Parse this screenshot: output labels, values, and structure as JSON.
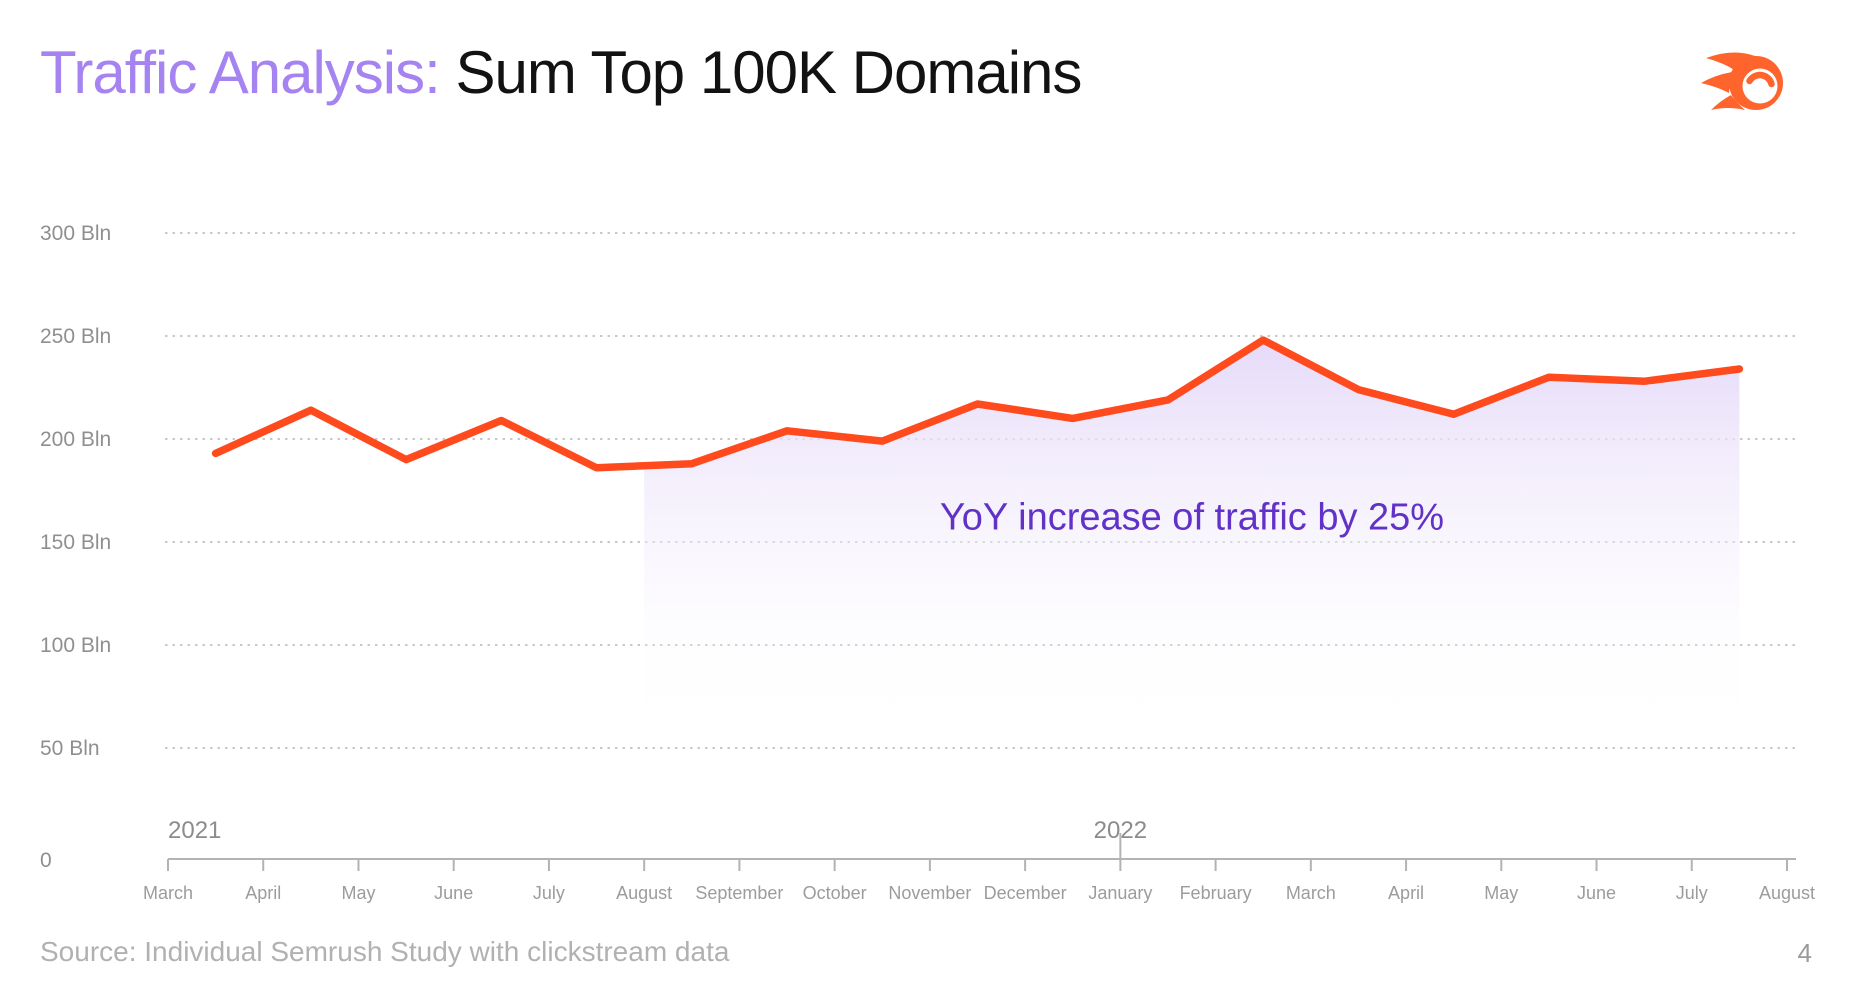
{
  "header": {
    "title_accent": "Traffic Analysis:",
    "title_main": " Sum Top 100K Domains",
    "logo_name": "semrush-logo"
  },
  "chart_data": {
    "type": "line",
    "title": "Sum Top 100K Domains monthly traffic",
    "unit": "Bln visits",
    "categories": [
      "Mar 2021",
      "Apr 2021",
      "May 2021",
      "Jun 2021",
      "Jul 2021",
      "Aug 2021",
      "Sep 2021",
      "Oct 2021",
      "Nov 2021",
      "Dec 2021",
      "Jan 2022",
      "Feb 2022",
      "Mar 2022",
      "Apr 2022",
      "May 2022",
      "Jun 2022",
      "Jul 2022"
    ],
    "values": [
      193,
      214,
      190,
      209,
      186,
      188,
      204,
      199,
      217,
      210,
      219,
      248,
      224,
      212,
      230,
      228,
      234
    ],
    "x_tick_labels": [
      "March",
      "April",
      "May",
      "June",
      "July",
      "August",
      "September",
      "October",
      "November",
      "December",
      "January",
      "February",
      "March",
      "April",
      "May",
      "June",
      "July",
      "August"
    ],
    "year_markers": [
      {
        "label": "2021",
        "tick_index": 0,
        "align": "start"
      },
      {
        "label": "2022",
        "tick_index": 10,
        "align": "middle"
      }
    ],
    "y_grid_values": [
      300,
      250,
      200,
      150,
      100,
      50
    ],
    "y_tick_labels": [
      "300 Bln",
      "250 Bln",
      "200 Bln",
      "150 Bln",
      "100 Bln",
      "50 Bln"
    ],
    "y_zero_label": "0",
    "ylim": [
      0,
      320
    ],
    "grid": "dotted horizontal lines",
    "legend": "none",
    "annotation": {
      "text": "YoY increase of traffic by 25%"
    },
    "highlight_region": {
      "description": "purple gradient area under the line from August 2021 through the last point",
      "start_tick_index": 5,
      "ends_at": "last point"
    }
  },
  "footer": {
    "source": "Source: Individual Semrush Study with clickstream data",
    "page_number": "4"
  },
  "colors": {
    "title_accent": "#a583f0",
    "title_text": "#121212",
    "line": "#ff4a1d",
    "logo_orange": "#ff642d",
    "annotation_text": "#6231c8",
    "shade_top": "#e4d8f8",
    "axis_gray": "#b3b3b3",
    "y_label_gray": "#8f8f8f",
    "month_label_gray": "#9c9c9c",
    "year_label_gray": "#8c8c8c",
    "gridline_gray": "#c9c9c9",
    "source_gray": "#b1b1b1"
  }
}
